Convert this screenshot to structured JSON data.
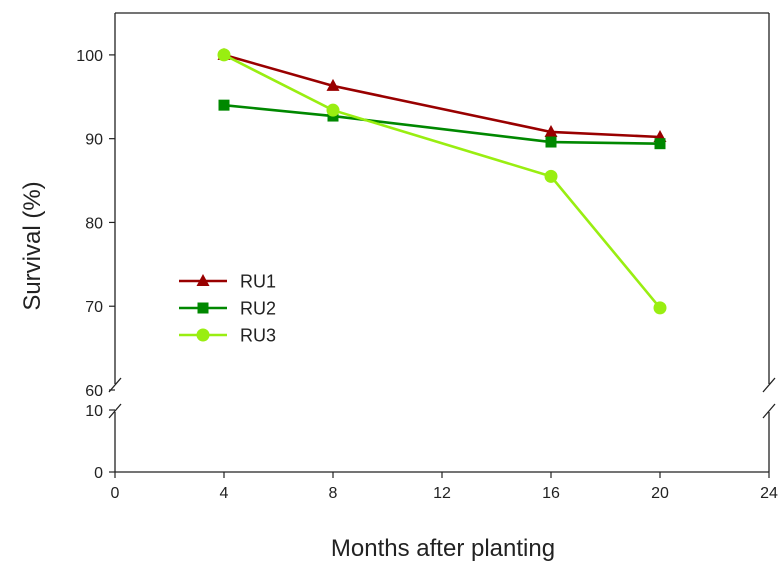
{
  "chart_data": {
    "type": "line",
    "title": "",
    "xlabel": "Months after planting",
    "ylabel": "Survival (%)",
    "xlim": [
      0,
      24
    ],
    "x_ticks": [
      0,
      4,
      8,
      12,
      16,
      20,
      24
    ],
    "ylim_upper": [
      60,
      105
    ],
    "ylim_lower": [
      0,
      10
    ],
    "y_ticks_upper": [
      60,
      70,
      80,
      90,
      100
    ],
    "y_ticks_lower": [
      0,
      10
    ],
    "axis_break": true,
    "grid": false,
    "legend_position": "left",
    "series": [
      {
        "name": "RU1",
        "color": "#990000",
        "marker": "triangle",
        "x": [
          4,
          8,
          16,
          20
        ],
        "y": [
          100,
          96.3,
          90.8,
          90.2
        ]
      },
      {
        "name": "RU2",
        "color": "#008800",
        "marker": "square",
        "x": [
          4,
          8,
          16,
          20
        ],
        "y": [
          94.0,
          92.7,
          89.6,
          89.4
        ]
      },
      {
        "name": "RU3",
        "color": "#99ee11",
        "marker": "circle",
        "x": [
          4,
          8,
          16,
          20
        ],
        "y": [
          100,
          93.4,
          85.5,
          69.8
        ]
      }
    ]
  }
}
